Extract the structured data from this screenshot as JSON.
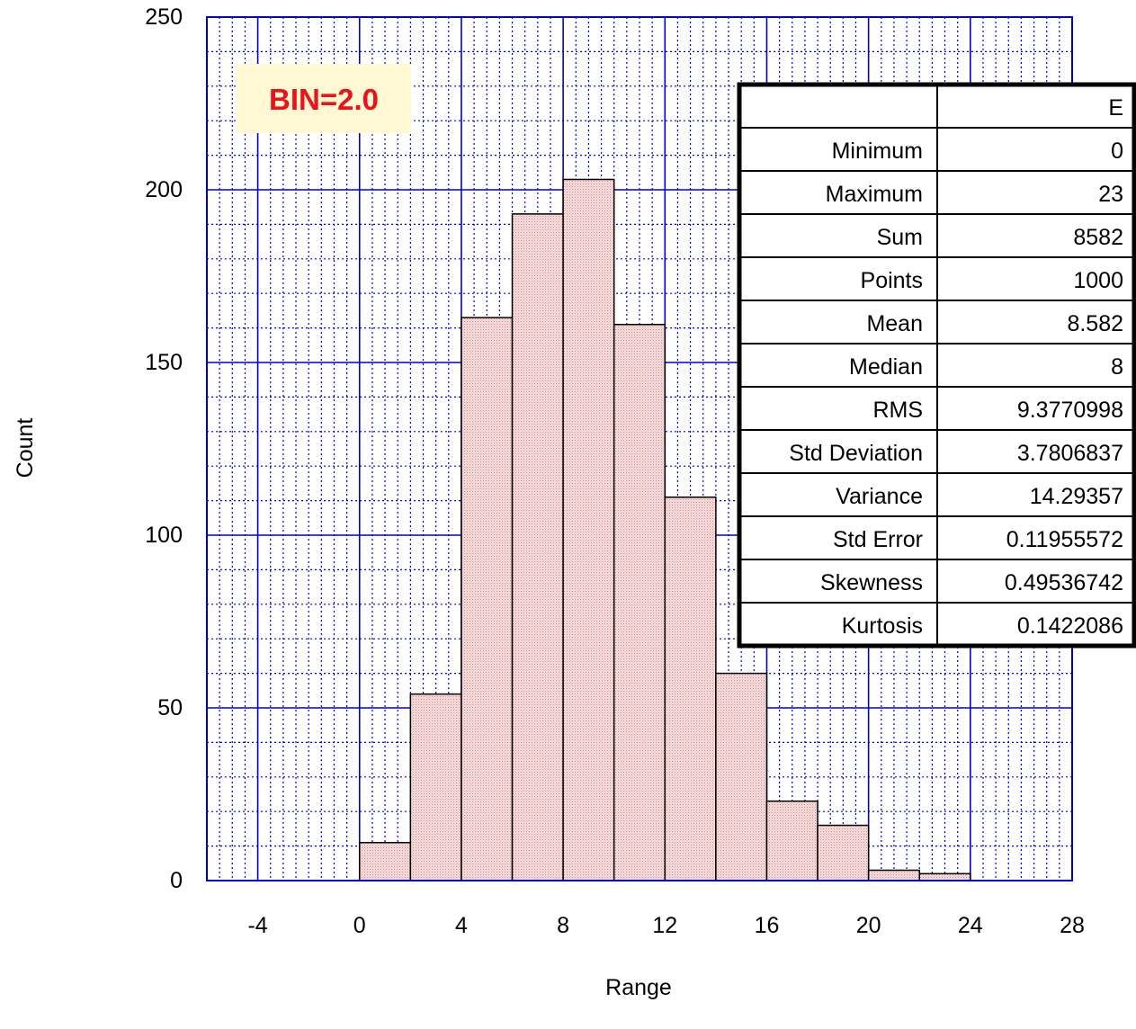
{
  "chart_data": {
    "type": "bar",
    "histogram": true,
    "bin_label": "BIN=2.0",
    "xlabel": "Range",
    "ylabel": "Count",
    "xlim": [
      -6,
      28
    ],
    "ylim": [
      0,
      250
    ],
    "x_ticks": [
      "-4",
      "0",
      "4",
      "8",
      "12",
      "16",
      "20",
      "24",
      "28"
    ],
    "y_ticks": [
      "0",
      "50",
      "100",
      "150",
      "200",
      "250"
    ],
    "grid": true,
    "bar_color": "#f2c9c9",
    "grid_color": "#0000cc",
    "bins": [
      {
        "x0": 0,
        "x1": 2,
        "count": 11
      },
      {
        "x0": 2,
        "x1": 4,
        "count": 54
      },
      {
        "x0": 4,
        "x1": 6,
        "count": 163
      },
      {
        "x0": 6,
        "x1": 8,
        "count": 193
      },
      {
        "x0": 8,
        "x1": 10,
        "count": 203
      },
      {
        "x0": 10,
        "x1": 12,
        "count": 161
      },
      {
        "x0": 12,
        "x1": 14,
        "count": 111
      },
      {
        "x0": 14,
        "x1": 16,
        "count": 60
      },
      {
        "x0": 16,
        "x1": 18,
        "count": 23
      },
      {
        "x0": 18,
        "x1": 20,
        "count": 16
      },
      {
        "x0": 20,
        "x1": 22,
        "count": 3
      },
      {
        "x0": 22,
        "x1": 24,
        "count": 2
      }
    ],
    "stats_table": {
      "column_header": "E",
      "rows": [
        {
          "label": "Minimum",
          "value": "0"
        },
        {
          "label": "Maximum",
          "value": "23"
        },
        {
          "label": "Sum",
          "value": "8582"
        },
        {
          "label": "Points",
          "value": "1000"
        },
        {
          "label": "Mean",
          "value": "8.582"
        },
        {
          "label": "Median",
          "value": "8"
        },
        {
          "label": "RMS",
          "value": "9.3770998"
        },
        {
          "label": "Std Deviation",
          "value": "3.7806837"
        },
        {
          "label": "Variance",
          "value": "14.29357"
        },
        {
          "label": "Std Error",
          "value": "0.11955572"
        },
        {
          "label": "Skewness",
          "value": "0.49536742"
        },
        {
          "label": "Kurtosis",
          "value": "0.1422086"
        }
      ]
    }
  }
}
